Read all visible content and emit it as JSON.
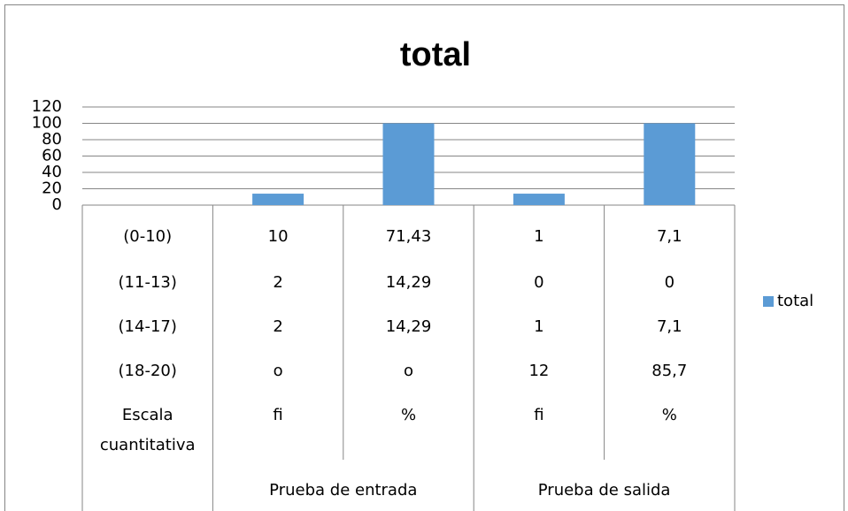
{
  "chart_data": {
    "type": "bar",
    "title": "total",
    "categories": [
      [
        "(0-10)",
        "(11-13)",
        "(14-17)",
        "(18-20)",
        "Escala cuantitativa"
      ],
      [
        "10",
        "2",
        "2",
        "o",
        "fi"
      ],
      [
        "71,43",
        "14,29",
        "14,29",
        "o",
        "%"
      ],
      [
        "1",
        "0",
        "1",
        "12",
        "fi"
      ],
      [
        "7,1",
        "0",
        "7,1",
        "85,7",
        "%"
      ]
    ],
    "groups": [
      null,
      "Prueba de entrada",
      "Prueba de entrada",
      "Prueba de salida",
      "Prueba de salida"
    ],
    "series": [
      {
        "name": "total",
        "color": "#5b9bd5",
        "values": [
          null,
          14,
          100,
          14,
          100
        ]
      }
    ],
    "ylim": [
      0,
      120
    ],
    "yticks": [
      0,
      20,
      40,
      60,
      80,
      100,
      120
    ],
    "grid": true,
    "legend": "right"
  }
}
